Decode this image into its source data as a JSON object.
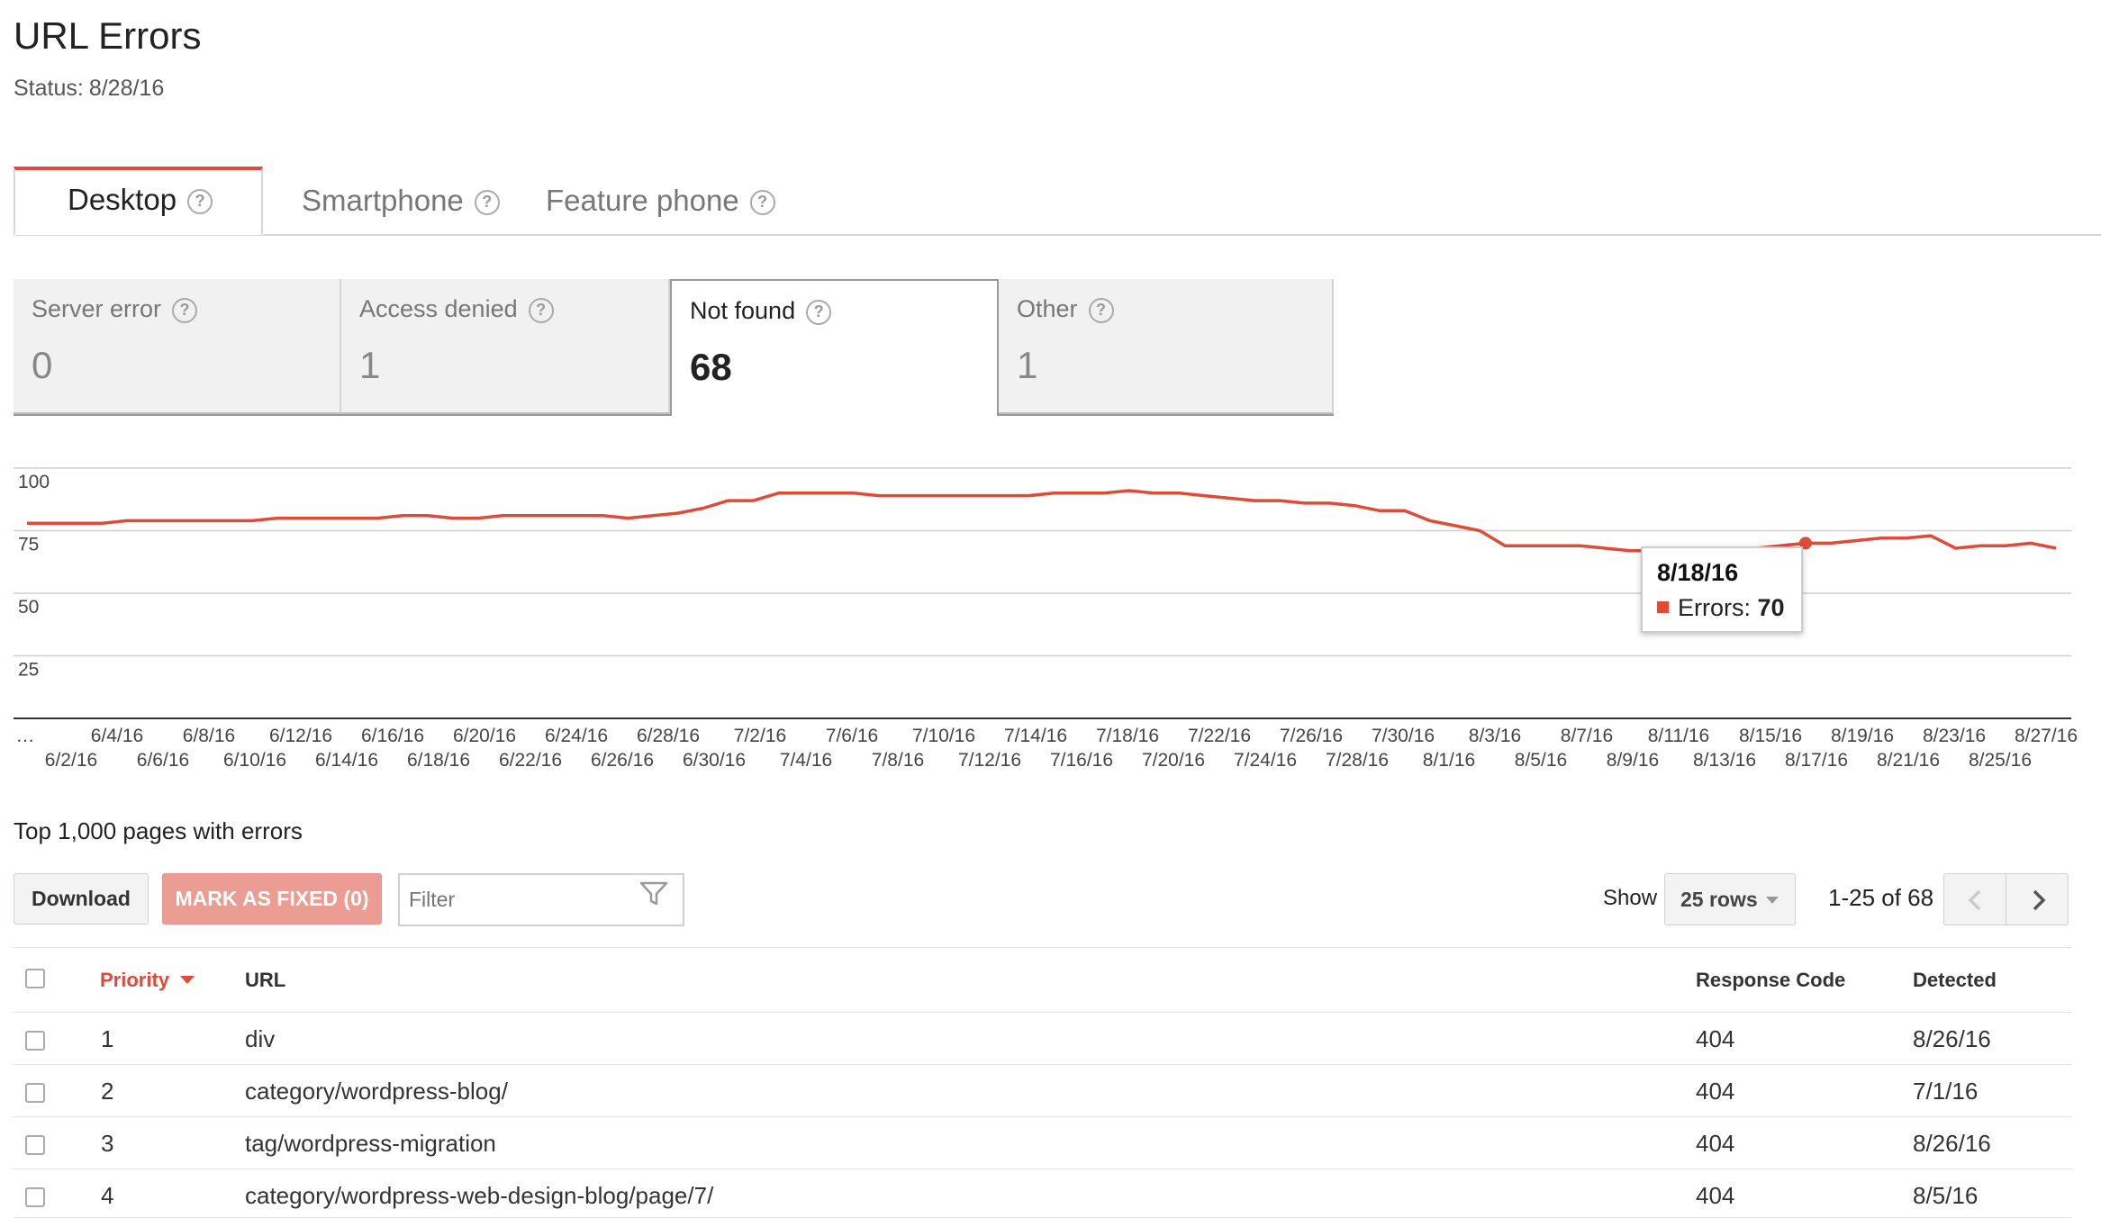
{
  "header": {
    "title": "URL Errors",
    "status_label": "Status:",
    "status_date": "8/28/16"
  },
  "device_tabs": [
    {
      "label": "Desktop",
      "active": true
    },
    {
      "label": "Smartphone",
      "active": false
    },
    {
      "label": "Feature phone",
      "active": false
    }
  ],
  "error_types": [
    {
      "label": "Server error",
      "count": "0",
      "selected": false
    },
    {
      "label": "Access denied",
      "count": "1",
      "selected": false
    },
    {
      "label": "Not found",
      "count": "68",
      "selected": true
    },
    {
      "label": "Other",
      "count": "1",
      "selected": false
    }
  ],
  "chart_data": {
    "type": "line",
    "title": "",
    "xlabel": "",
    "ylabel": "",
    "ylim": [
      0,
      100
    ],
    "yticks": [
      100,
      75,
      50,
      25
    ],
    "grid": true,
    "color": "#dd4b39",
    "x_start_label": "…",
    "x_labels_row1": [
      "6/4/16",
      "6/8/16",
      "6/12/16",
      "6/16/16",
      "6/20/16",
      "6/24/16",
      "6/28/16",
      "7/2/16",
      "7/6/16",
      "7/10/16",
      "7/14/16",
      "7/18/16",
      "7/22/16",
      "7/26/16",
      "7/30/16",
      "8/3/16",
      "8/7/16",
      "8/11/16",
      "8/15/16",
      "8/19/16",
      "8/23/16",
      "8/27/16"
    ],
    "x_labels_row2": [
      "6/2/16",
      "6/6/16",
      "6/10/16",
      "6/14/16",
      "6/18/16",
      "6/22/16",
      "6/26/16",
      "6/30/16",
      "7/4/16",
      "7/8/16",
      "7/12/16",
      "7/16/16",
      "7/20/16",
      "7/24/16",
      "7/28/16",
      "8/1/16",
      "8/5/16",
      "8/9/16",
      "8/13/16",
      "8/17/16",
      "8/21/16",
      "8/25/16"
    ],
    "series": [
      {
        "values": [
          [
            0,
            78
          ],
          [
            1,
            78
          ],
          [
            2,
            78
          ],
          [
            3,
            78
          ],
          [
            4,
            79
          ],
          [
            5,
            79
          ],
          [
            6,
            79
          ],
          [
            7,
            79
          ],
          [
            8,
            79
          ],
          [
            9,
            79
          ],
          [
            10,
            80
          ],
          [
            11,
            80
          ],
          [
            12,
            80
          ],
          [
            13,
            80
          ],
          [
            14,
            80
          ],
          [
            15,
            81
          ],
          [
            16,
            81
          ],
          [
            17,
            80
          ],
          [
            18,
            80
          ],
          [
            19,
            81
          ],
          [
            20,
            81
          ],
          [
            21,
            81
          ],
          [
            22,
            81
          ],
          [
            23,
            81
          ],
          [
            24,
            80
          ],
          [
            25,
            81
          ],
          [
            26,
            82
          ],
          [
            27,
            84
          ],
          [
            28,
            87
          ],
          [
            29,
            87
          ],
          [
            30,
            90
          ],
          [
            31,
            90
          ],
          [
            32,
            90
          ],
          [
            33,
            90
          ],
          [
            34,
            89
          ],
          [
            35,
            89
          ],
          [
            36,
            89
          ],
          [
            37,
            89
          ],
          [
            38,
            89
          ],
          [
            39,
            89
          ],
          [
            40,
            89
          ],
          [
            41,
            90
          ],
          [
            42,
            90
          ],
          [
            43,
            90
          ],
          [
            44,
            91
          ],
          [
            45,
            90
          ],
          [
            46,
            90
          ],
          [
            47,
            89
          ],
          [
            48,
            88
          ],
          [
            49,
            87
          ],
          [
            50,
            87
          ],
          [
            51,
            86
          ],
          [
            52,
            86
          ],
          [
            53,
            85
          ],
          [
            54,
            83
          ],
          [
            55,
            83
          ],
          [
            56,
            79
          ],
          [
            57,
            77
          ],
          [
            58,
            75
          ],
          [
            59,
            69
          ],
          [
            60,
            69
          ],
          [
            61,
            69
          ],
          [
            62,
            69
          ],
          [
            63,
            68
          ],
          [
            64,
            67
          ],
          [
            65,
            67
          ],
          [
            66,
            67
          ],
          [
            67,
            68
          ],
          [
            68,
            68
          ],
          [
            69,
            68
          ],
          [
            70,
            69
          ],
          [
            71,
            70
          ],
          [
            72,
            70
          ],
          [
            73,
            71
          ],
          [
            74,
            72
          ],
          [
            75,
            72
          ],
          [
            76,
            73
          ],
          [
            77,
            68
          ],
          [
            78,
            69
          ],
          [
            79,
            69
          ],
          [
            80,
            70
          ],
          [
            81,
            68
          ]
        ]
      }
    ],
    "highlight": {
      "index": 71,
      "date": "8/18/16",
      "series_label": "Errors",
      "value": "70"
    }
  },
  "table": {
    "heading": "Top 1,000 pages with errors",
    "download_label": "Download",
    "mark_fixed_label": "MARK AS FIXED (0)",
    "filter_placeholder": "Filter",
    "show_label": "Show",
    "rows_option": "25 rows",
    "page_range": "1-25 of 68",
    "columns": {
      "priority": "Priority",
      "url": "URL",
      "response_code": "Response Code",
      "detected": "Detected"
    },
    "rows": [
      {
        "priority": "1",
        "url": "div",
        "response_code": "404",
        "detected": "8/26/16"
      },
      {
        "priority": "2",
        "url": "category/wordpress-blog/",
        "response_code": "404",
        "detected": "7/1/16"
      },
      {
        "priority": "3",
        "url": "tag/wordpress-migration",
        "response_code": "404",
        "detected": "8/26/16"
      },
      {
        "priority": "4",
        "url": "category/wordpress-web-design-blog/page/7/",
        "response_code": "404",
        "detected": "8/5/16"
      }
    ]
  }
}
